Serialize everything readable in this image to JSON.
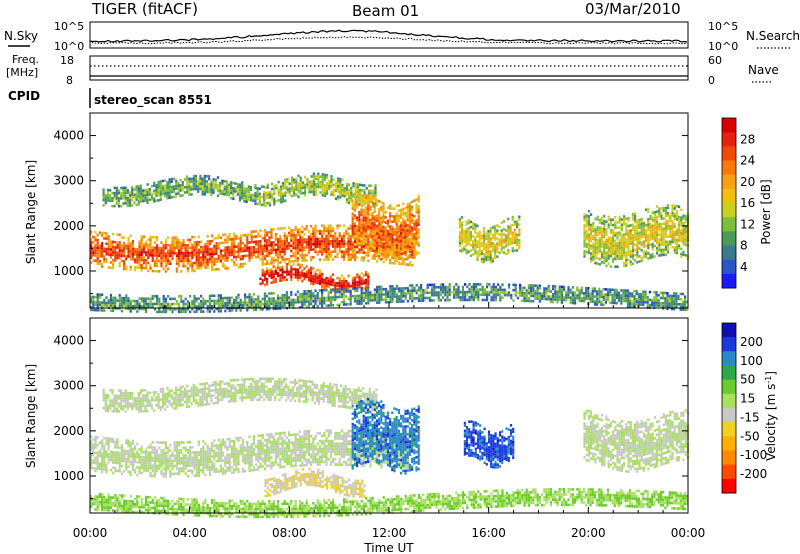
{
  "header": {
    "title": "TIGER (fitACF)",
    "beam": "Beam 01",
    "date": "03/Mar/2010"
  },
  "strip_nsky": {
    "label": "N.Sky",
    "left_ticks": [
      "10^5",
      "10^0"
    ],
    "right_ticks": [
      "10^5",
      "10^0"
    ],
    "legend": "N.Search"
  },
  "strip_freq": {
    "label_1": "Freq.",
    "label_2": "[MHz]",
    "left_ticks": [
      "18",
      "8"
    ],
    "right_ticks": [
      "60",
      "0"
    ],
    "legend": "Nave"
  },
  "cpid": {
    "label": "CPID",
    "value": "stereo_scan 8551"
  },
  "chart_data": [
    {
      "type": "heatmap",
      "panel": "power",
      "ylabel": "Slant Range [km]",
      "ylim": [
        180,
        4500
      ],
      "yticks": [
        "1000",
        "2000",
        "3000",
        "4000"
      ],
      "xlim_hours": [
        0,
        24
      ],
      "colorbar": {
        "label": "Power [dB]",
        "ticks": [
          "4",
          "8",
          "12",
          "16",
          "20",
          "24",
          "28"
        ],
        "range": [
          0,
          32
        ],
        "colors": [
          "#1a1aff",
          "#2a56c8",
          "#3a7a8a",
          "#4a9a5a",
          "#7dbf3a",
          "#c8d020",
          "#f0c010",
          "#f8a010",
          "#f87808",
          "#f04a08",
          "#e82010",
          "#d80000"
        ]
      },
      "bands": [
        {
          "t0": 0.0,
          "t1": 13.0,
          "r0": 1150,
          "r1": 1900,
          "level": 0.82
        },
        {
          "t0": 0.5,
          "t1": 7.0,
          "r0": 2550,
          "r1": 3000,
          "level": 0.35
        },
        {
          "t0": 7.0,
          "t1": 11.5,
          "r0": 2550,
          "r1": 3050,
          "level": 0.45
        },
        {
          "t0": 6.8,
          "t1": 11.2,
          "r0": 650,
          "r1": 1050,
          "level": 0.95
        },
        {
          "t0": 10.5,
          "t1": 13.2,
          "r0": 1300,
          "r1": 2600,
          "level": 0.75
        },
        {
          "t0": 14.8,
          "t1": 17.2,
          "r0": 1300,
          "r1": 2100,
          "level": 0.5
        },
        {
          "t0": 19.8,
          "t1": 24.0,
          "r0": 1200,
          "r1": 2350,
          "level": 0.5
        },
        {
          "t0": 0.0,
          "t1": 24.0,
          "r0": 220,
          "r1": 600,
          "level": 0.3
        }
      ]
    },
    {
      "type": "heatmap",
      "panel": "velocity",
      "ylabel": "Slant Range [km]",
      "ylim": [
        180,
        4500
      ],
      "yticks": [
        "1000",
        "2000",
        "3000",
        "4000"
      ],
      "xlim_hours": [
        0,
        24
      ],
      "colorbar": {
        "label": "Velocity [m s^-1]",
        "ticks": [
          "-200",
          "-100",
          "-50",
          "-15",
          "15",
          "50",
          "100",
          "200"
        ],
        "range": [
          -250,
          250
        ],
        "colors": [
          "#ff0000",
          "#ff4a00",
          "#ff8a00",
          "#ffb000",
          "#f0d020",
          "#c8c8c8",
          "#a8e060",
          "#6ccc2a",
          "#2aa84a",
          "#2a8ac8",
          "#1a3ae0",
          "#1010b0"
        ]
      },
      "bands": [
        {
          "t0": 0.0,
          "t1": 12.8,
          "r0": 1150,
          "r1": 1900,
          "level": 0.0
        },
        {
          "t0": 0.5,
          "t1": 11.5,
          "r0": 2550,
          "r1": 3050,
          "level": 0.0
        },
        {
          "t0": 7.0,
          "t1": 11.0,
          "r0": 650,
          "r1": 1050,
          "level": -40
        },
        {
          "t0": 10.5,
          "t1": 13.2,
          "r0": 1200,
          "r1": 2600,
          "level": 150
        },
        {
          "t0": 15.0,
          "t1": 17.0,
          "r0": 1300,
          "r1": 2100,
          "level": 180
        },
        {
          "t0": 19.8,
          "t1": 24.0,
          "r0": 1200,
          "r1": 2350,
          "level": 0.0
        },
        {
          "t0": 0.0,
          "t1": 24.0,
          "r0": 220,
          "r1": 600,
          "level": 40
        }
      ]
    }
  ],
  "time_axis": {
    "ticks": [
      "00:00",
      "04:00",
      "08:00",
      "12:00",
      "16:00",
      "20:00",
      "00:00"
    ],
    "label": "Time UT"
  }
}
